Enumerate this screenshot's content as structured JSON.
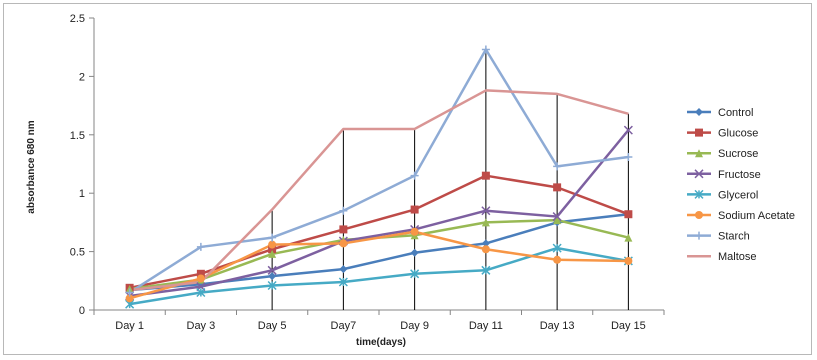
{
  "chart_data": {
    "type": "line",
    "xlabel": "time(days)",
    "ylabel": "absorbance 680 nm",
    "categories": [
      "Day 1",
      "Day 3",
      "Day 5",
      "Day7",
      "Day 9",
      "Day 11",
      "Day 13",
      "Day 15"
    ],
    "ylim": [
      0,
      2.5
    ],
    "yticks": [
      "0",
      "0.5",
      "1",
      "1.5",
      "2",
      "2.5"
    ],
    "legend_position": "right",
    "grid": false,
    "error_bars": "vertical black lines extending from 0 to the Maltose/Starch peak values at Day 5 through Day 15",
    "series": [
      {
        "name": "Control",
        "color": "#4a7ebb",
        "marker": "diamond",
        "values": [
          0.17,
          0.22,
          0.29,
          0.35,
          0.49,
          0.57,
          0.75,
          0.82
        ]
      },
      {
        "name": "Glucose",
        "color": "#be4b48",
        "marker": "square",
        "values": [
          0.19,
          0.31,
          0.52,
          0.69,
          0.86,
          1.15,
          1.05,
          0.82
        ]
      },
      {
        "name": "Sucrose",
        "color": "#98b954",
        "marker": "triangle",
        "values": [
          0.18,
          0.26,
          0.48,
          0.6,
          0.64,
          0.75,
          0.77,
          0.62
        ]
      },
      {
        "name": "Fructose",
        "color": "#7d60a0",
        "marker": "x",
        "values": [
          0.12,
          0.2,
          0.34,
          0.59,
          0.69,
          0.85,
          0.8,
          1.54
        ]
      },
      {
        "name": "Glycerol",
        "color": "#46aac5",
        "marker": "asterisk",
        "values": [
          0.05,
          0.15,
          0.21,
          0.24,
          0.31,
          0.34,
          0.53,
          0.42
        ]
      },
      {
        "name": "Sodium Acetate",
        "color": "#f79646",
        "marker": "circle",
        "values": [
          0.1,
          0.27,
          0.56,
          0.57,
          0.67,
          0.52,
          0.43,
          0.42
        ]
      },
      {
        "name": "Starch",
        "color": "#8eabd5",
        "marker": "plus",
        "values": [
          0.15,
          0.54,
          0.62,
          0.85,
          1.15,
          2.23,
          1.23,
          1.31
        ]
      },
      {
        "name": "Maltose",
        "color": "#d99594",
        "marker": "none",
        "values": [
          0.17,
          0.24,
          0.86,
          1.55,
          1.55,
          1.88,
          1.85,
          1.68
        ]
      }
    ]
  }
}
